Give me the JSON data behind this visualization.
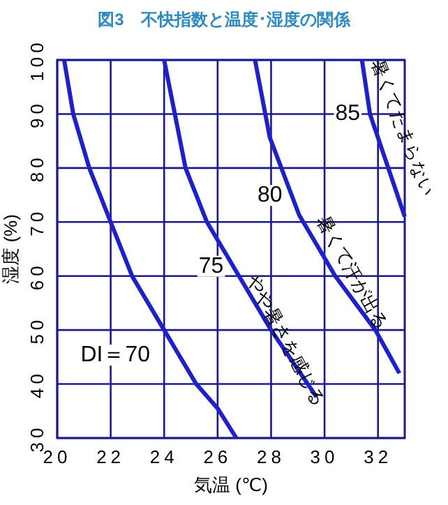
{
  "chart_data": {
    "type": "line",
    "title": "図3　不快指数と温度･湿度の関係",
    "xlabel": "気温 (℃)",
    "ylabel": "湿度 (%)",
    "xlim": [
      20,
      33
    ],
    "ylim": [
      30,
      100
    ],
    "xticks": [
      20,
      22,
      24,
      26,
      28,
      30,
      32
    ],
    "yticks": [
      30,
      40,
      50,
      60,
      70,
      80,
      90,
      100
    ],
    "grid": true,
    "marker": "none",
    "line_style": "solid",
    "series": [
      {
        "name": "DI＝70",
        "color": "#2020c8",
        "x": [
          20.26,
          20.6,
          21.2,
          22,
          22.8,
          24,
          25.2,
          26,
          26.7
        ],
        "values": [
          100,
          90,
          80,
          70,
          60,
          50,
          40,
          35.5,
          30
        ]
      },
      {
        "name": "75",
        "color": "#2020c8",
        "x": [
          24,
          24.4,
          24.8,
          25.6,
          26.8,
          28,
          29.7
        ],
        "values": [
          100,
          90,
          80,
          70,
          60,
          50,
          37.6
        ]
      },
      {
        "name": "80",
        "color": "#2020c8",
        "x": [
          27.4,
          27.95,
          29.05,
          30.4,
          31.9,
          32.8
        ],
        "values": [
          100,
          85.7,
          71.3,
          60,
          50,
          42
        ]
      },
      {
        "name": "85",
        "color": "#2020c8",
        "x": [
          31.4,
          31.7,
          33
        ],
        "values": [
          100,
          90,
          71
        ]
      }
    ],
    "annotations": [
      "暑くてたまらない",
      "暑くて汗が出る",
      "やや暑さを感じる"
    ]
  }
}
